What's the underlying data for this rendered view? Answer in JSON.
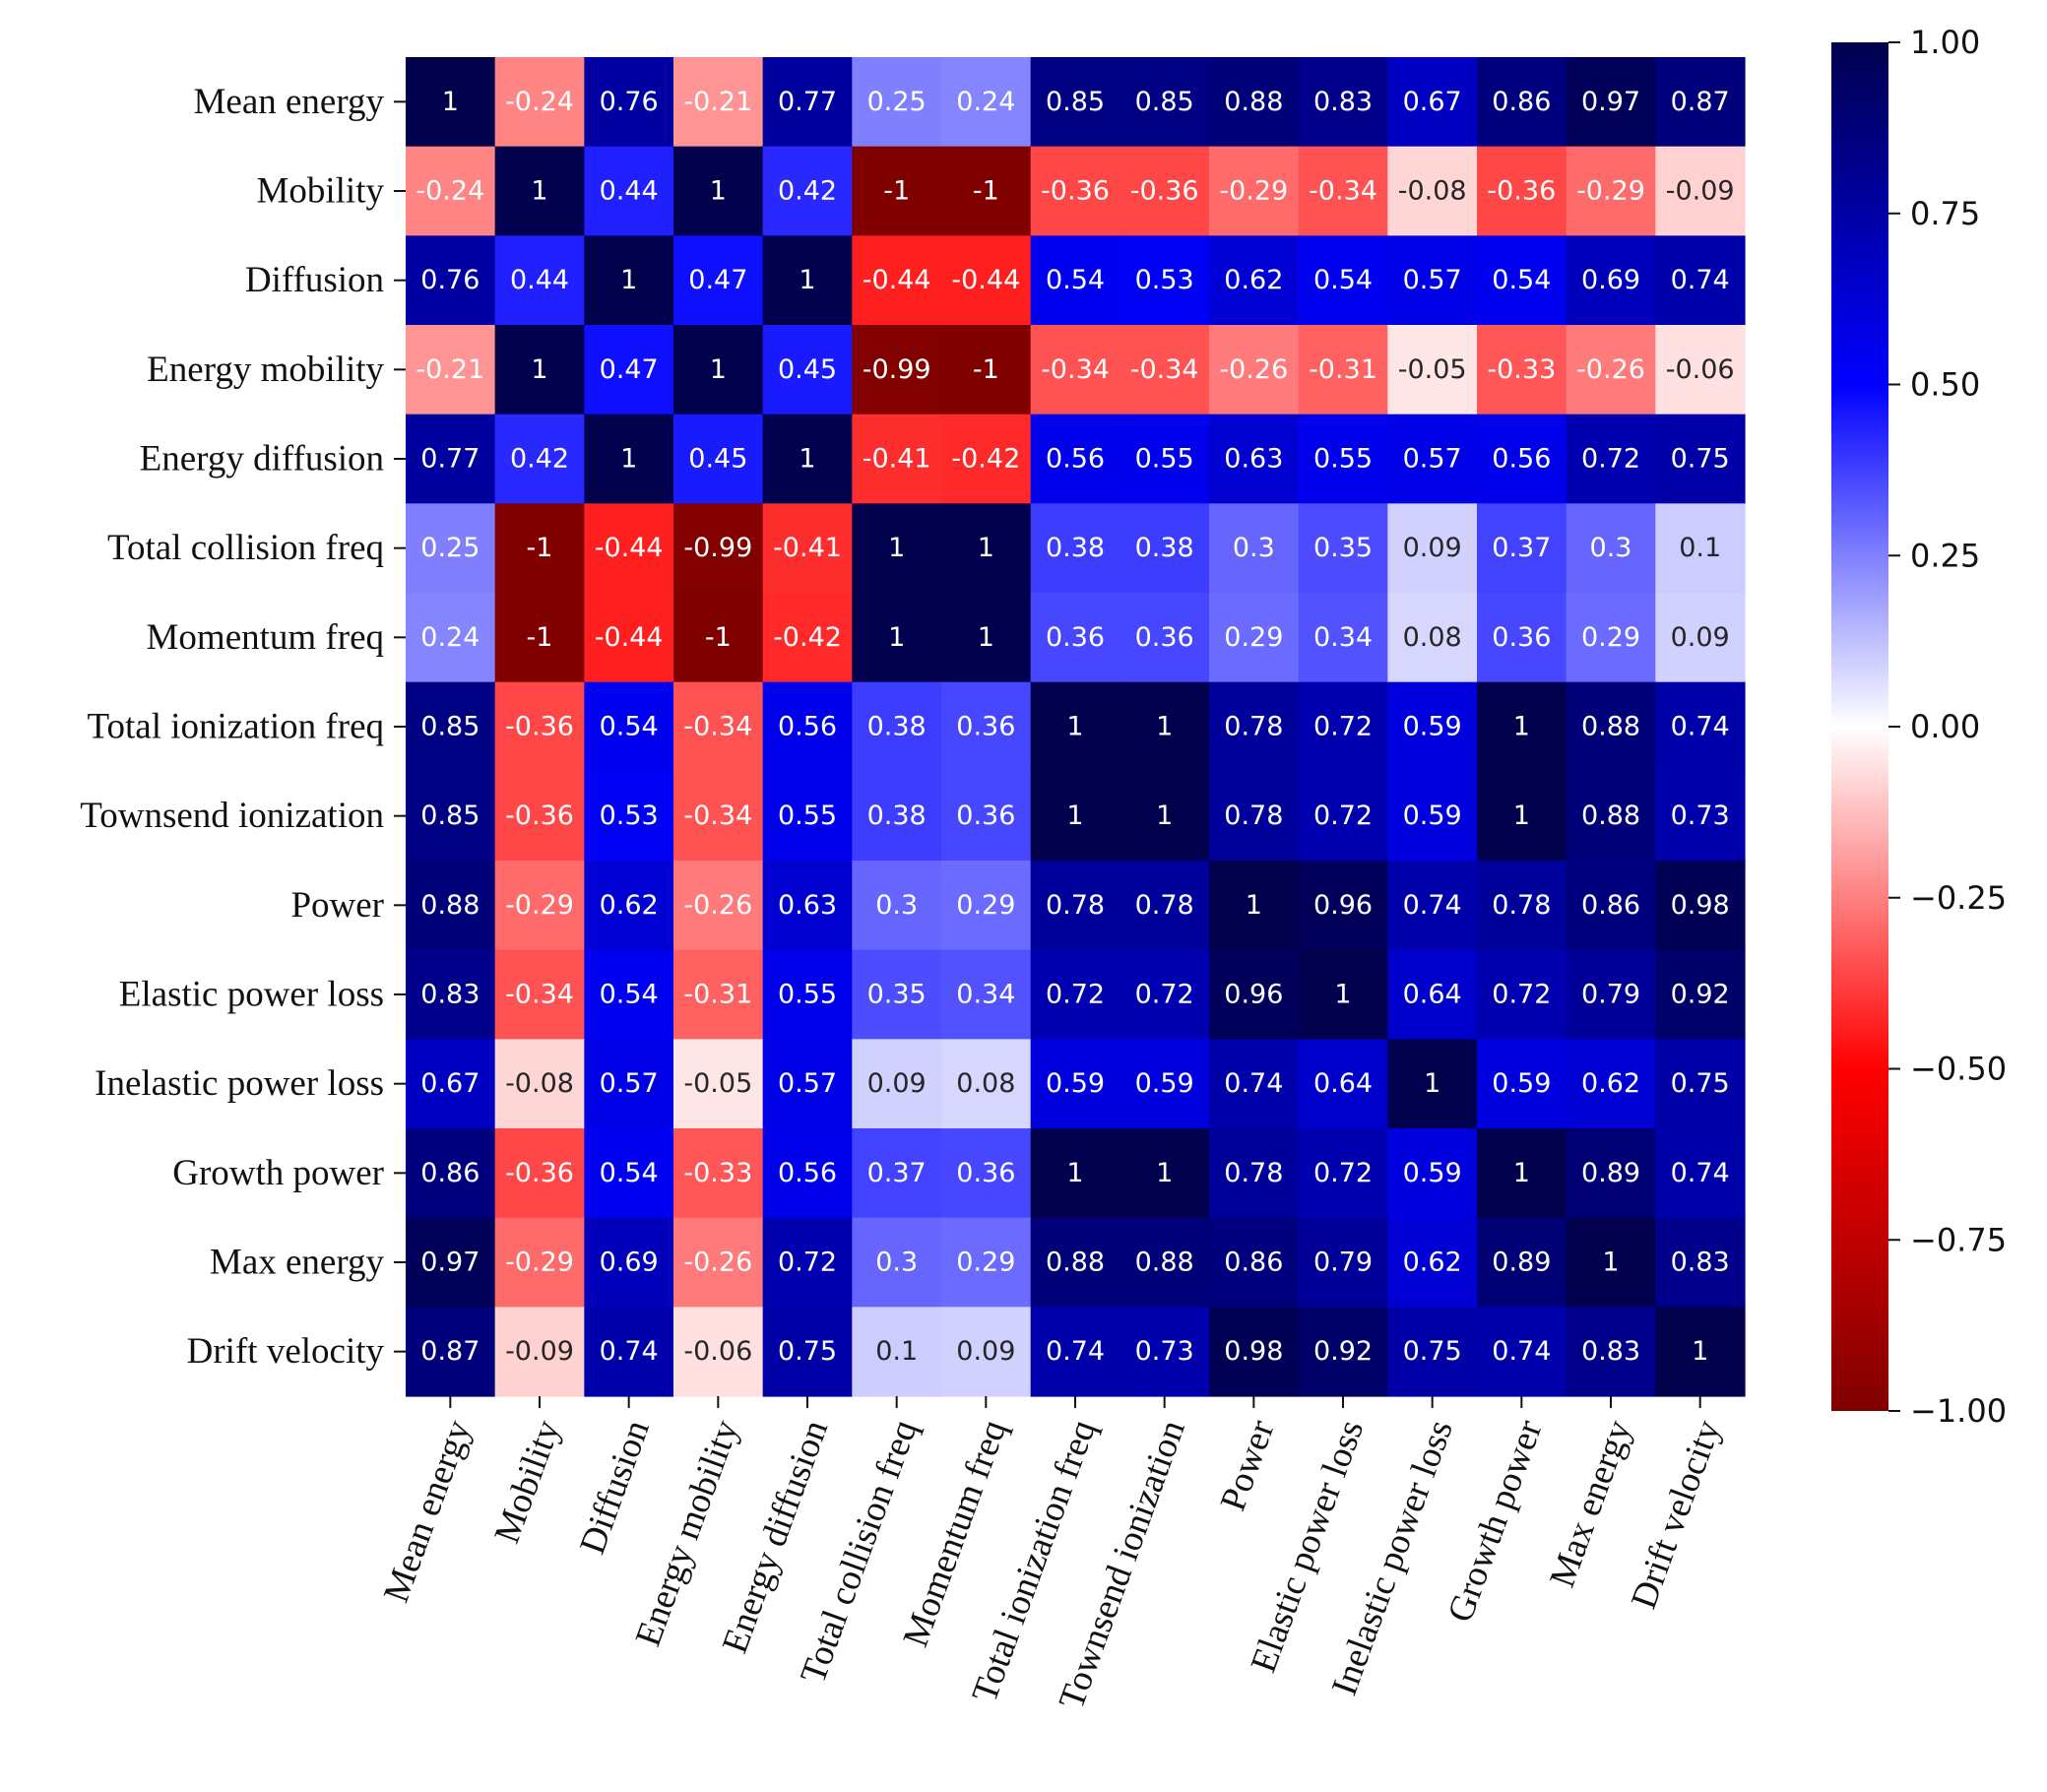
{
  "chart_data": {
    "type": "heatmap",
    "title": "",
    "labels": [
      "Mean energy",
      "Mobility",
      "Diffusion",
      "Energy mobility",
      "Energy diffusion",
      "Total collision freq",
      "Momentum freq",
      "Total ionization freq",
      "Townsend ionization",
      "Power",
      "Elastic power loss",
      "Inelastic power loss",
      "Growth power",
      "Max energy",
      "Drift velocity"
    ],
    "values": [
      [
        1,
        -0.24,
        0.76,
        -0.21,
        0.77,
        0.25,
        0.24,
        0.85,
        0.85,
        0.88,
        0.83,
        0.67,
        0.86,
        0.97,
        0.87
      ],
      [
        -0.24,
        1,
        0.44,
        1,
        0.42,
        -1,
        -1,
        -0.36,
        -0.36,
        -0.29,
        -0.34,
        -0.08,
        -0.36,
        -0.29,
        -0.09
      ],
      [
        0.76,
        0.44,
        1,
        0.47,
        1,
        -0.44,
        -0.44,
        0.54,
        0.53,
        0.62,
        0.54,
        0.57,
        0.54,
        0.69,
        0.74
      ],
      [
        -0.21,
        1,
        0.47,
        1,
        0.45,
        -0.99,
        -1,
        -0.34,
        -0.34,
        -0.26,
        -0.31,
        -0.05,
        -0.33,
        -0.26,
        -0.06
      ],
      [
        0.77,
        0.42,
        1,
        0.45,
        1,
        -0.41,
        -0.42,
        0.56,
        0.55,
        0.63,
        0.55,
        0.57,
        0.56,
        0.72,
        0.75
      ],
      [
        0.25,
        -1,
        -0.44,
        -0.99,
        -0.41,
        1,
        1,
        0.38,
        0.38,
        0.3,
        0.35,
        0.09,
        0.37,
        0.3,
        0.1
      ],
      [
        0.24,
        -1,
        -0.44,
        -1,
        -0.42,
        1,
        1,
        0.36,
        0.36,
        0.29,
        0.34,
        0.08,
        0.36,
        0.29,
        0.09
      ],
      [
        0.85,
        -0.36,
        0.54,
        -0.34,
        0.56,
        0.38,
        0.36,
        1,
        1,
        0.78,
        0.72,
        0.59,
        1,
        0.88,
        0.74
      ],
      [
        0.85,
        -0.36,
        0.53,
        -0.34,
        0.55,
        0.38,
        0.36,
        1,
        1,
        0.78,
        0.72,
        0.59,
        1,
        0.88,
        0.73
      ],
      [
        0.88,
        -0.29,
        0.62,
        -0.26,
        0.63,
        0.3,
        0.29,
        0.78,
        0.78,
        1,
        0.96,
        0.74,
        0.78,
        0.86,
        0.98
      ],
      [
        0.83,
        -0.34,
        0.54,
        -0.31,
        0.55,
        0.35,
        0.34,
        0.72,
        0.72,
        0.96,
        1,
        0.64,
        0.72,
        0.79,
        0.92
      ],
      [
        0.67,
        -0.08,
        0.57,
        -0.05,
        0.57,
        0.09,
        0.08,
        0.59,
        0.59,
        0.74,
        0.64,
        1,
        0.59,
        0.62,
        0.75
      ],
      [
        0.86,
        -0.36,
        0.54,
        -0.33,
        0.56,
        0.37,
        0.36,
        1,
        1,
        0.78,
        0.72,
        0.59,
        1,
        0.89,
        0.74
      ],
      [
        0.97,
        -0.29,
        0.69,
        -0.26,
        0.72,
        0.3,
        0.29,
        0.88,
        0.88,
        0.86,
        0.79,
        0.62,
        0.89,
        1,
        0.83
      ],
      [
        0.87,
        -0.09,
        0.74,
        -0.06,
        0.75,
        0.1,
        0.09,
        0.74,
        0.73,
        0.98,
        0.92,
        0.75,
        0.74,
        0.83,
        1
      ]
    ],
    "colorbar": {
      "range": [
        -1,
        1
      ],
      "ticks": [
        1,
        0.75,
        0.5,
        0.25,
        0,
        -0.25,
        -0.5,
        -0.75,
        -1
      ],
      "tick_labels": [
        "1.00",
        "0.75",
        "0.50",
        "0.25",
        "0.00",
        "−0.25",
        "−0.50",
        "−0.75",
        "−1.00"
      ],
      "colormap": "seismic_r",
      "colors": {
        "neg_dark": "#800000",
        "neg_mid": "#ff0000",
        "zero": "#ffffff",
        "pos_mid": "#0000ff",
        "pos_dark": "#00004d"
      }
    },
    "xlabel": "",
    "ylabel": "",
    "legend": "colorbar right"
  }
}
